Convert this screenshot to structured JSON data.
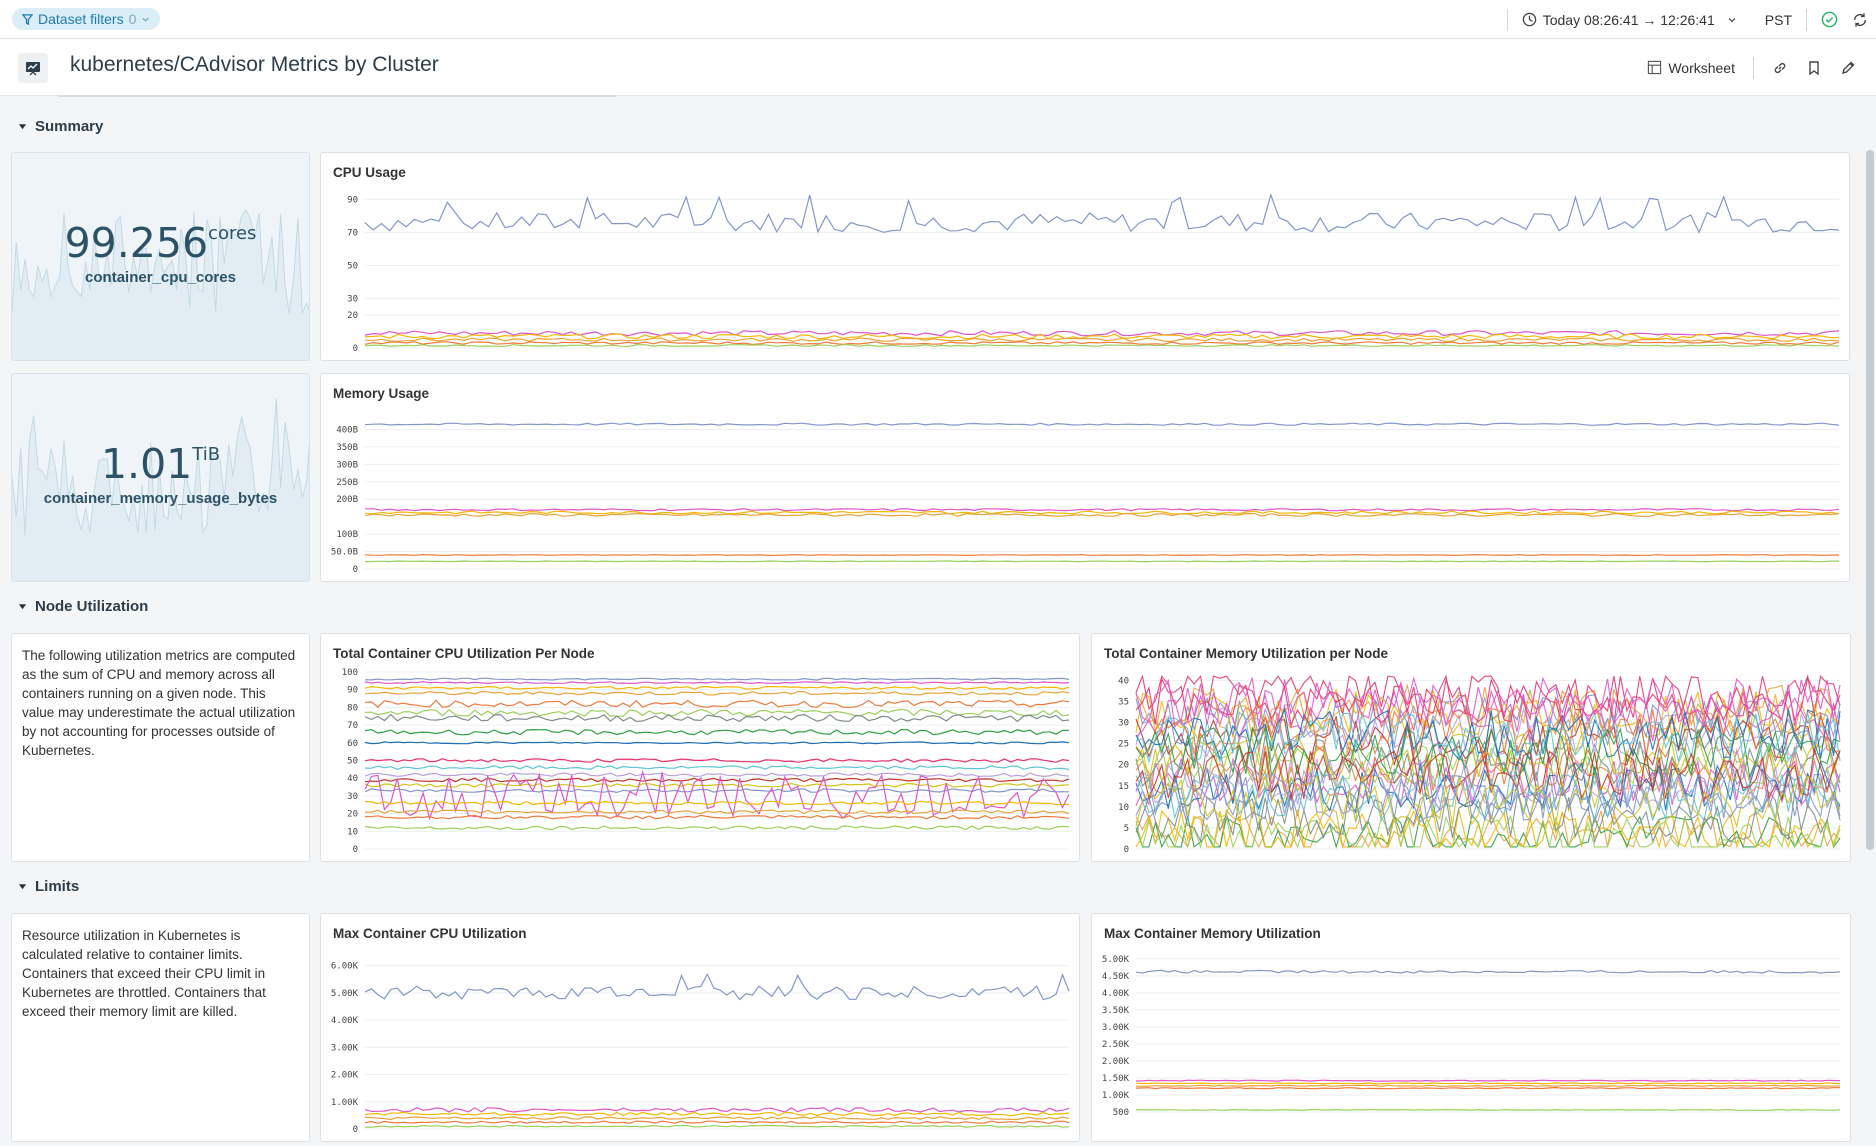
{
  "topbar": {
    "filter_label": "Dataset filters",
    "filter_count": "0",
    "time_range": "Today 08:26:41 → 12:26:41",
    "timezone": "PST"
  },
  "header": {
    "title": "kubernetes/CAdvisor Metrics by Cluster",
    "worksheet_label": "Worksheet"
  },
  "sections": {
    "summary": "Summary",
    "node_util": "Node Utilization",
    "limits": "Limits"
  },
  "stats": {
    "cpu": {
      "value": "99.256",
      "unit": "cores",
      "label": "container_cpu_cores"
    },
    "mem": {
      "value": "1.01",
      "unit": "TiB",
      "label": "container_memory_usage_bytes"
    }
  },
  "notes": {
    "node_util": "The following utilization metrics are computed as the sum of CPU and memory across all containers running on a given node. This value may underestimate the actual utilization by not accounting for processes outside of Kubernetes.",
    "limits": "Resource utilization in Kubernetes is calculated relative to container limits. Containers that exceed their CPU limit in Kubernetes are throttled. Containers that exceed their memory limit are killed."
  },
  "colors": {
    "accent": "#1c7bb3",
    "ok": "#2fb56b",
    "series": [
      "#8397c7",
      "#e055c9",
      "#f2b705",
      "#e8a33b",
      "#f07a3d",
      "#9ccf5a",
      "#7f8c8d",
      "#2f9e44",
      "#1c6fb3",
      "#e8336e",
      "#5ec4d4",
      "#b9a0e0",
      "#c0392b",
      "#d4c21a"
    ]
  },
  "chart_data": [
    {
      "id": "cpu_usage",
      "type": "line",
      "title": "CPU Usage",
      "ylim": [
        0,
        95
      ],
      "yticks": [
        "0",
        "20",
        "30",
        "50",
        "70",
        "90"
      ],
      "ytick_values": [
        0,
        20,
        30,
        50,
        70,
        90
      ],
      "series_profile": [
        {
          "base": 76,
          "amp": 6,
          "spikes": 93
        },
        {
          "base": 9,
          "amp": 1.5
        },
        {
          "base": 7,
          "amp": 1.5
        },
        {
          "base": 5,
          "amp": 1
        },
        {
          "base": 3,
          "amp": 0.8
        },
        {
          "base": 1.5,
          "amp": 0.5
        }
      ]
    },
    {
      "id": "memory_usage",
      "type": "line",
      "title": "Memory Usage",
      "ylim": [
        0,
        450
      ],
      "yticks": [
        "0",
        "50.0B",
        "100B",
        "200B",
        "250B",
        "300B",
        "350B",
        "400B"
      ],
      "ytick_values": [
        0,
        50,
        100,
        200,
        250,
        300,
        350,
        400
      ],
      "series_profile": [
        {
          "base": 415,
          "amp": 3
        },
        {
          "base": 170,
          "amp": 3
        },
        {
          "base": 162,
          "amp": 4
        },
        {
          "base": 155,
          "amp": 4
        },
        {
          "base": 40,
          "amp": 1
        },
        {
          "base": 22,
          "amp": 1
        }
      ]
    },
    {
      "id": "node_cpu",
      "type": "line",
      "title": "Total Container CPU Utilization Per Node",
      "ylim": [
        0,
        100
      ],
      "yticks": [
        "0",
        "10",
        "20",
        "30",
        "40",
        "50",
        "60",
        "70",
        "80",
        "90",
        "100"
      ],
      "ytick_values": [
        0,
        10,
        20,
        30,
        40,
        50,
        60,
        70,
        80,
        90,
        100
      ],
      "series_profile": [
        {
          "base": 96,
          "amp": 0.5
        },
        {
          "base": 94,
          "amp": 0.5
        },
        {
          "base": 91,
          "amp": 0.8
        },
        {
          "base": 88,
          "amp": 1
        },
        {
          "base": 82,
          "amp": 2
        },
        {
          "base": 77,
          "amp": 2
        },
        {
          "base": 74,
          "amp": 2
        },
        {
          "base": 66,
          "amp": 1.5
        },
        {
          "base": 60,
          "amp": 0.5
        },
        {
          "base": 50,
          "amp": 1
        },
        {
          "base": 46,
          "amp": 1
        },
        {
          "base": 42,
          "amp": 1
        },
        {
          "base": 39,
          "amp": 1
        },
        {
          "base": 36,
          "amp": 1
        },
        {
          "base": 33,
          "amp": 1
        },
        {
          "base": 30,
          "amp": 12,
          "spiky": true
        },
        {
          "base": 26,
          "amp": 1
        },
        {
          "base": 21,
          "amp": 1
        },
        {
          "base": 18,
          "amp": 1
        },
        {
          "base": 12,
          "amp": 1
        }
      ]
    },
    {
      "id": "node_mem",
      "type": "line",
      "title": "Total Container Memory Utilization per Node",
      "ylim": [
        0,
        42
      ],
      "yticks": [
        "0",
        "5",
        "10",
        "15",
        "20",
        "25",
        "30",
        "35",
        "40"
      ],
      "ytick_values": [
        0,
        5,
        10,
        15,
        20,
        25,
        30,
        35,
        40
      ],
      "series_count": 30,
      "range": [
        2,
        38
      ]
    },
    {
      "id": "max_cpu",
      "type": "line",
      "title": "Max Container CPU Utilization",
      "ylim": [
        0,
        6500
      ],
      "yticks": [
        "0",
        "1.00K",
        "2.00K",
        "3.00K",
        "4.00K",
        "5.00K",
        "6.00K"
      ],
      "ytick_values": [
        0,
        1000,
        2000,
        3000,
        4000,
        5000,
        6000
      ],
      "series_profile": [
        {
          "base": 5000,
          "amp": 250,
          "spikes": 5800
        },
        {
          "base": 700,
          "amp": 80
        },
        {
          "base": 550,
          "amp": 60
        },
        {
          "base": 400,
          "amp": 50
        },
        {
          "base": 250,
          "amp": 40
        },
        {
          "base": 100,
          "amp": 30
        }
      ]
    },
    {
      "id": "max_mem",
      "type": "line",
      "title": "Max Container Memory Utilization",
      "ylim": [
        0,
        5200
      ],
      "yticks": [
        "500",
        "1.00K",
        "1.50K",
        "2.00K",
        "2.50K",
        "3.00K",
        "3.50K",
        "4.00K",
        "4.50K",
        "5.00K"
      ],
      "ytick_values": [
        500,
        1000,
        1500,
        2000,
        2500,
        3000,
        3500,
        4000,
        4500,
        5000
      ],
      "series_profile": [
        {
          "base": 4620,
          "amp": 40
        },
        {
          "base": 1420,
          "amp": 15
        },
        {
          "base": 1340,
          "amp": 15
        },
        {
          "base": 1270,
          "amp": 15
        },
        {
          "base": 1200,
          "amp": 15
        },
        {
          "base": 560,
          "amp": 10
        }
      ]
    }
  ]
}
